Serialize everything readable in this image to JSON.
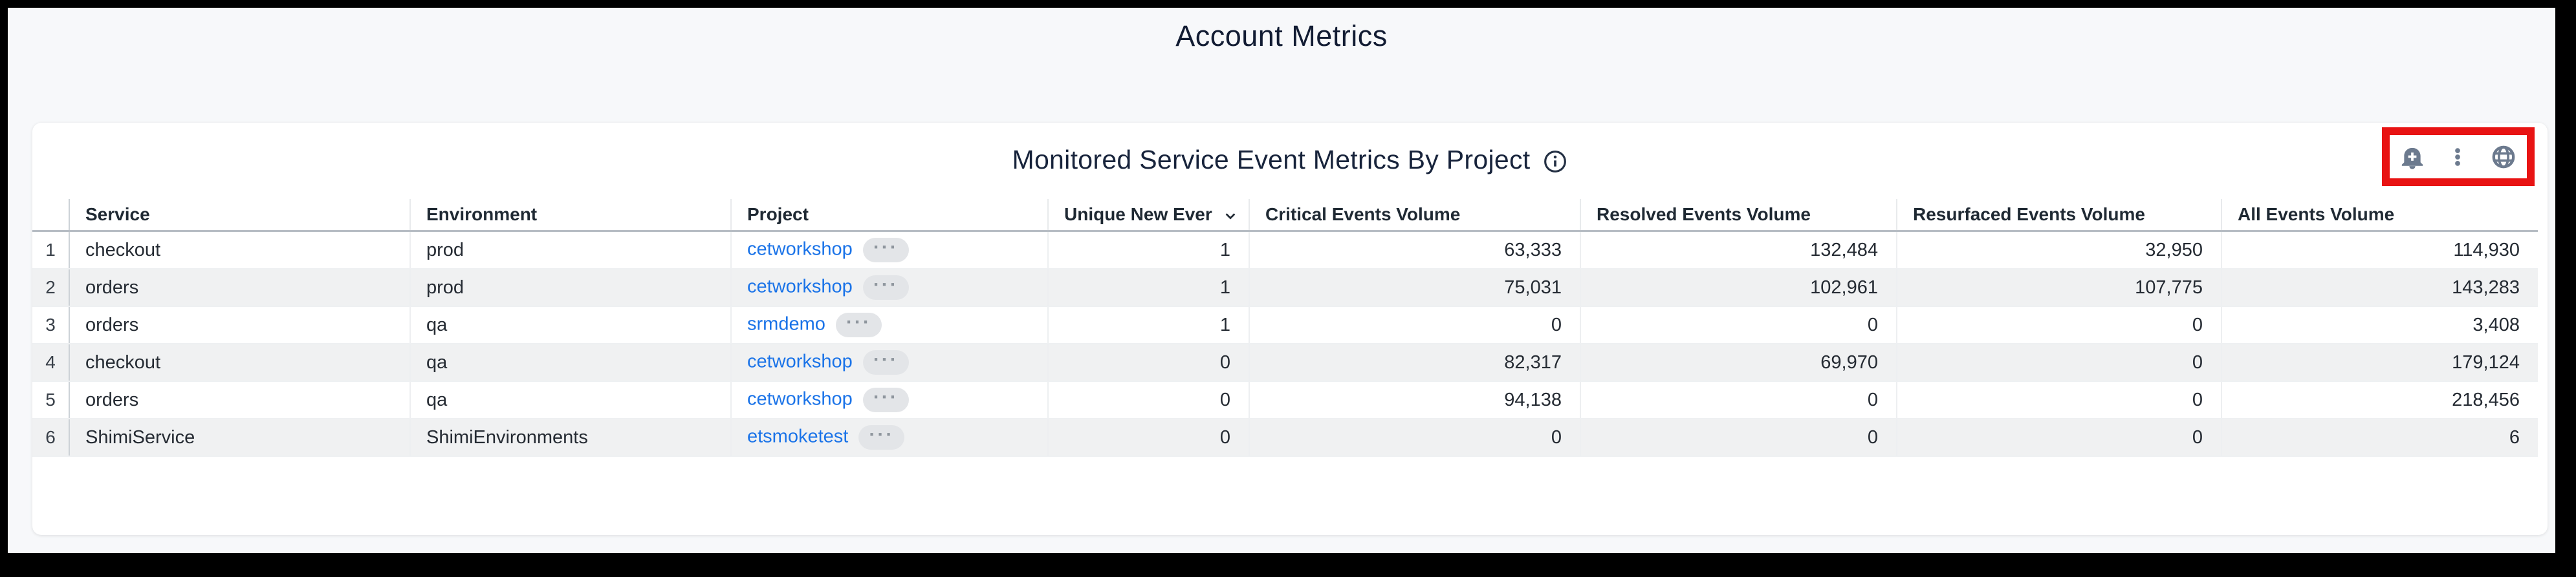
{
  "page": {
    "title": "Account Metrics"
  },
  "panel": {
    "title": "Monitored Service Event Metrics By Project",
    "info_icon": "info-circle-icon",
    "toolbar": {
      "icons": [
        "add-alert-icon",
        "more-options-icon",
        "globe-icon"
      ],
      "annotation_highlight_color": "#e81313"
    }
  },
  "table": {
    "sort": {
      "column": "Unique New Ever",
      "direction": "desc"
    },
    "project_more_label": "···",
    "columns": [
      {
        "label": "",
        "field": "num"
      },
      {
        "label": "Service",
        "field": "service"
      },
      {
        "label": "Environment",
        "field": "environment"
      },
      {
        "label": "Project",
        "field": "project"
      },
      {
        "label": "Unique New Ever",
        "field": "unique_new_ever",
        "sorted": true
      },
      {
        "label": "Critical Events Volume",
        "field": "critical_events_volume"
      },
      {
        "label": "Resolved Events Volume",
        "field": "resolved_events_volume"
      },
      {
        "label": "Resurfaced Events Volume",
        "field": "resurfaced_events_volume"
      },
      {
        "label": "All Events Volume",
        "field": "all_events_volume"
      }
    ],
    "rows": [
      {
        "num": "1",
        "service": "checkout",
        "environment": "prod",
        "project": "cetworkshop",
        "unique_new_ever": "1",
        "critical_events_volume": "63,333",
        "resolved_events_volume": "132,484",
        "resurfaced_events_volume": "32,950",
        "all_events_volume": "114,930"
      },
      {
        "num": "2",
        "service": "orders",
        "environment": "prod",
        "project": "cetworkshop",
        "unique_new_ever": "1",
        "critical_events_volume": "75,031",
        "resolved_events_volume": "102,961",
        "resurfaced_events_volume": "107,775",
        "all_events_volume": "143,283"
      },
      {
        "num": "3",
        "service": "orders",
        "environment": "qa",
        "project": "srmdemo",
        "unique_new_ever": "1",
        "critical_events_volume": "0",
        "resolved_events_volume": "0",
        "resurfaced_events_volume": "0",
        "all_events_volume": "3,408"
      },
      {
        "num": "4",
        "service": "checkout",
        "environment": "qa",
        "project": "cetworkshop",
        "unique_new_ever": "0",
        "critical_events_volume": "82,317",
        "resolved_events_volume": "69,970",
        "resurfaced_events_volume": "0",
        "all_events_volume": "179,124"
      },
      {
        "num": "5",
        "service": "orders",
        "environment": "qa",
        "project": "cetworkshop",
        "unique_new_ever": "0",
        "critical_events_volume": "94,138",
        "resolved_events_volume": "0",
        "resurfaced_events_volume": "0",
        "all_events_volume": "218,456"
      },
      {
        "num": "6",
        "service": "ShimiService",
        "environment": "ShimiEnvironments",
        "project": "etsmoketest",
        "unique_new_ever": "0",
        "critical_events_volume": "0",
        "resolved_events_volume": "0",
        "resurfaced_events_volume": "0",
        "all_events_volume": "6"
      }
    ]
  },
  "colors": {
    "page_background": "#f7f8fa",
    "card_background": "#ffffff",
    "link_blue": "#1a73e8",
    "icon_gray": "#6c7a8e",
    "annotation_red": "#e81313",
    "zebra_row": "#f0f1f2",
    "title_ink": "#121c33"
  }
}
